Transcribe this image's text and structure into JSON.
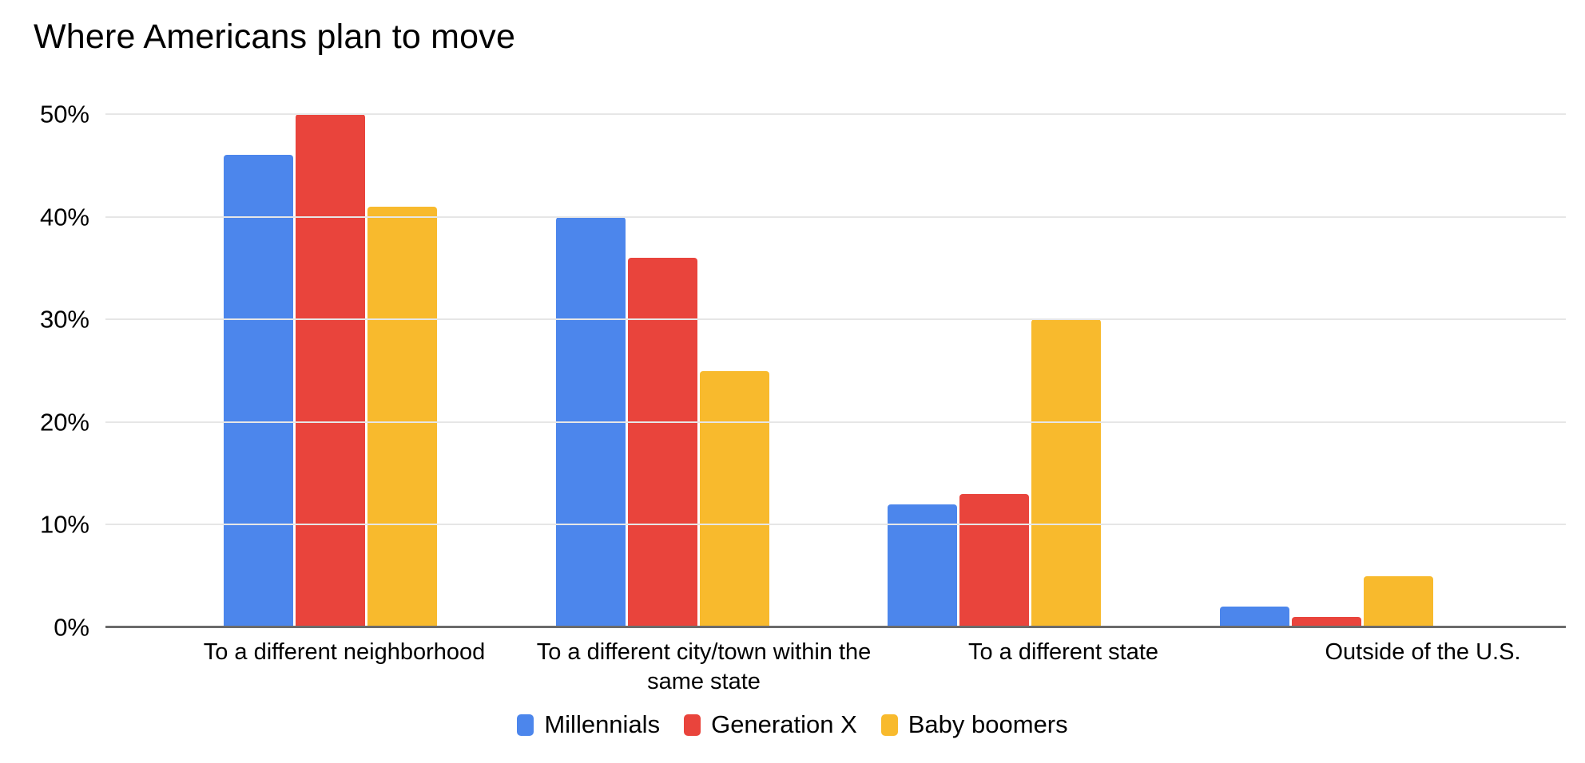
{
  "title": "Where Americans plan to move",
  "chart_data": {
    "type": "bar",
    "title": "Where Americans plan to move",
    "categories": [
      "To a different neighborhood",
      "To a different city/town within the same state",
      "To a different state",
      "Outside of the U.S."
    ],
    "series": [
      {
        "name": "Millennials",
        "color": "#4C86EC",
        "values": [
          46,
          40,
          12,
          2
        ]
      },
      {
        "name": "Generation X",
        "color": "#E9443C",
        "values": [
          50,
          36,
          13,
          1
        ]
      },
      {
        "name": "Baby boomers",
        "color": "#F8BA2D",
        "values": [
          41,
          25,
          30,
          5
        ]
      }
    ],
    "xlabel": "",
    "ylabel": "",
    "ylim": [
      0,
      50
    ],
    "ytick_step": 10,
    "ytick_labels": [
      "0%",
      "10%",
      "20%",
      "30%",
      "40%",
      "50%"
    ],
    "grid": true,
    "legend_position": "bottom"
  },
  "colors": {
    "background": "#FFFFFF",
    "gridline": "#E6E6E6",
    "axis_line": "#6B6B6B",
    "text": "#000000"
  }
}
